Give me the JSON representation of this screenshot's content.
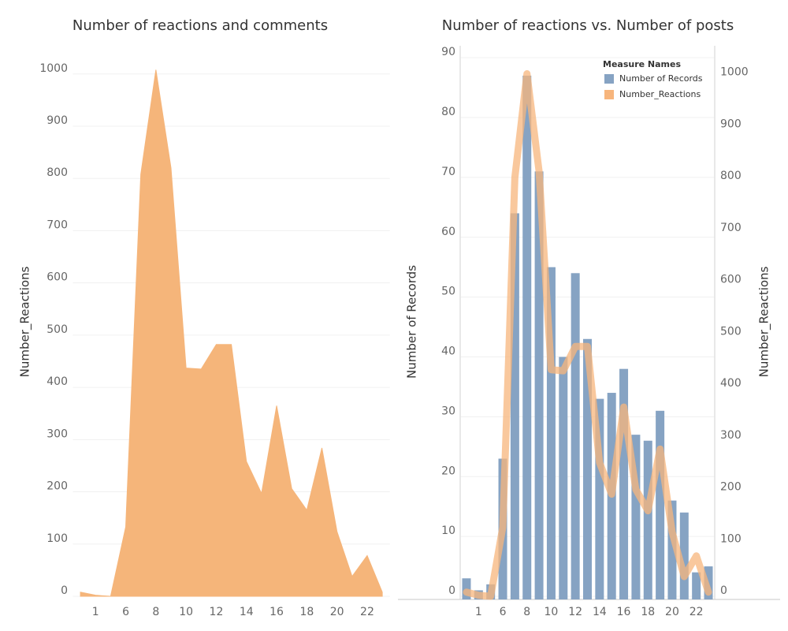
{
  "chart_data": [
    {
      "type": "area",
      "title": "Number of reactions and comments",
      "y_label": "Number_Reactions",
      "categories": [
        null,
        "1",
        null,
        "6",
        null,
        "8",
        null,
        "10",
        null,
        "12",
        null,
        "14",
        null,
        "16",
        null,
        "18",
        null,
        "20",
        null,
        "22",
        null
      ],
      "values": [
        8,
        2,
        0,
        133,
        808,
        1008,
        820,
        437,
        435,
        482,
        482,
        258,
        197,
        365,
        206,
        165,
        284,
        124,
        38,
        78,
        8
      ],
      "color": "#f5b57a",
      "ylim": [
        0,
        1054
      ],
      "yticks": [
        0,
        100,
        200,
        300,
        400,
        500,
        600,
        700,
        800,
        900,
        1000
      ],
      "grid": true
    },
    {
      "type": "combo",
      "title": "Number of reactions vs. Number of posts",
      "y_label": "Number of Records",
      "y2_label": "Number_Reactions",
      "legend_title": "Measure Names",
      "legend": "top-right",
      "categories": [
        null,
        "1",
        null,
        "6",
        null,
        "8",
        null,
        "10",
        null,
        "12",
        null,
        "14",
        null,
        "16",
        null,
        "18",
        null,
        "20",
        null,
        "22",
        null
      ],
      "series": [
        {
          "name": "Number of Records",
          "color": "#86a3c3",
          "values": [
            3,
            1,
            2,
            23,
            64,
            87,
            71,
            55,
            40,
            54,
            43,
            33,
            34,
            38,
            27,
            26,
            31,
            16,
            14,
            4,
            5
          ]
        },
        {
          "name": "Number_Reactions",
          "color": "#f7b57c",
          "axis": "y2",
          "values": [
            8,
            2,
            0,
            133,
            808,
            1008,
            820,
            437,
            435,
            482,
            482,
            258,
            197,
            365,
            206,
            165,
            284,
            124,
            38,
            78,
            8
          ]
        }
      ],
      "ylim": [
        0,
        92
      ],
      "yticks": [
        0,
        10,
        20,
        30,
        40,
        50,
        60,
        70,
        80,
        90
      ],
      "y2lim": [
        0,
        1062
      ],
      "y2ticks": [
        0,
        100,
        200,
        300,
        400,
        500,
        600,
        700,
        800,
        900,
        1000
      ],
      "grid": true
    }
  ]
}
